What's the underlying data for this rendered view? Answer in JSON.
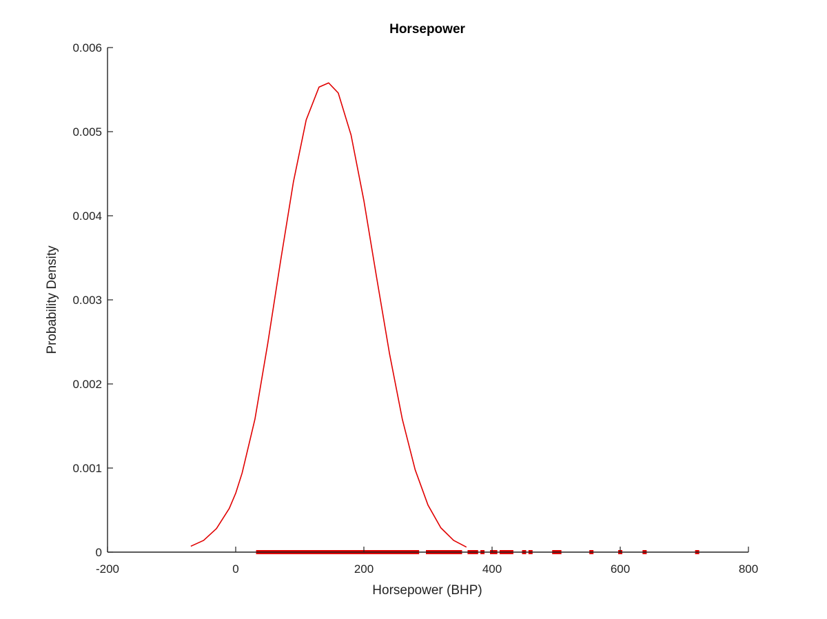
{
  "chart_data": {
    "type": "line",
    "title": "Horsepower",
    "xlabel": "Horsepower (BHP)",
    "ylabel": "Probability Density",
    "xlim": [
      -200,
      800
    ],
    "ylim": [
      0,
      0.006
    ],
    "xticks": [
      -200,
      0,
      200,
      400,
      600,
      800
    ],
    "yticks": [
      0,
      0.001,
      0.002,
      0.003,
      0.004,
      0.005,
      0.006
    ],
    "xtick_labels": [
      "-200",
      "0",
      "200",
      "400",
      "600",
      "800"
    ],
    "ytick_labels": [
      "0",
      "0.001",
      "0.002",
      "0.003",
      "0.004",
      "0.005",
      "0.006"
    ],
    "grid": false,
    "box": false,
    "series": [
      {
        "kind": "curve",
        "color": "#e00000",
        "x": [
          -70,
          -50,
          -30,
          -10,
          0,
          10,
          30,
          50,
          70,
          90,
          110,
          130,
          145,
          160,
          180,
          200,
          220,
          240,
          260,
          280,
          300,
          320,
          340,
          360
        ],
        "y": [
          7e-05,
          0.00014,
          0.00028,
          0.00052,
          0.0007,
          0.00094,
          0.00158,
          0.00248,
          0.00346,
          0.0044,
          0.00514,
          0.00553,
          0.00558,
          0.00546,
          0.00496,
          0.00418,
          0.00326,
          0.00236,
          0.00158,
          0.00098,
          0.00056,
          0.00029,
          0.00014,
          6e-05
        ]
      },
      {
        "kind": "points",
        "color": "#e00000",
        "x": [
          35,
          38,
          42,
          45,
          48,
          52,
          55,
          58,
          60,
          63,
          65,
          68,
          70,
          72,
          75,
          78,
          80,
          82,
          85,
          88,
          90,
          92,
          95,
          98,
          100,
          102,
          105,
          108,
          110,
          112,
          115,
          118,
          120,
          122,
          125,
          128,
          130,
          132,
          135,
          138,
          140,
          142,
          145,
          148,
          150,
          152,
          155,
          158,
          160,
          163,
          165,
          168,
          170,
          173,
          175,
          178,
          180,
          183,
          185,
          188,
          190,
          193,
          195,
          198,
          200,
          203,
          205,
          208,
          210,
          213,
          215,
          218,
          220,
          223,
          225,
          228,
          230,
          233,
          235,
          238,
          240,
          243,
          245,
          248,
          250,
          253,
          255,
          258,
          260,
          263,
          265,
          268,
          270,
          273,
          275,
          278,
          280,
          283,
          300,
          305,
          310,
          315,
          320,
          325,
          330,
          335,
          340,
          345,
          350,
          365,
          370,
          375,
          385,
          400,
          403,
          405,
          415,
          420,
          425,
          430,
          450,
          460,
          497,
          500,
          505,
          555,
          600,
          638,
          720
        ],
        "y": 0
      }
    ]
  }
}
